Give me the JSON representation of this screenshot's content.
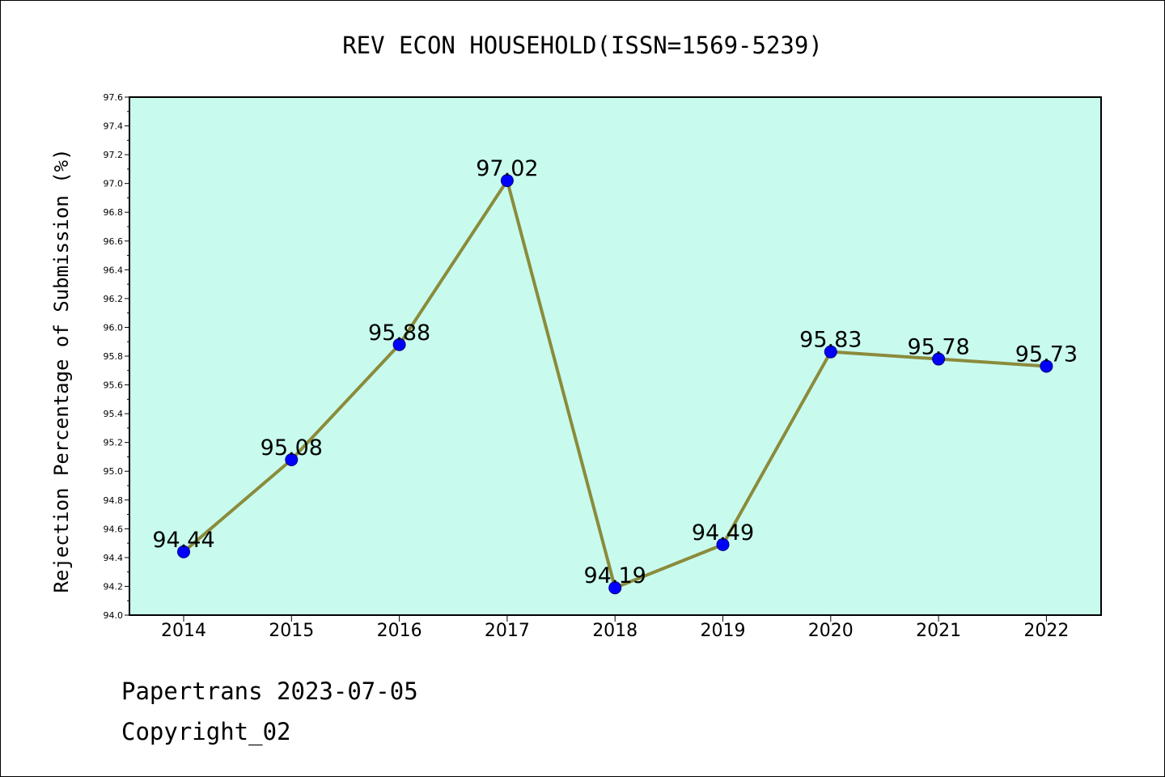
{
  "colors": {
    "background": "#ffffff",
    "plot_background": "#c8fbee",
    "line": "#8b8b3b",
    "marker": "#0000ff",
    "axis": "#000000",
    "text": "#000000"
  },
  "footer": {
    "source_line": "Papertrans 2023-07-05",
    "copyright_line": "Copyright_02"
  },
  "chart_data": {
    "type": "line",
    "title": "REV ECON HOUSEHOLD(ISSN=1569-5239)",
    "xlabel": "",
    "ylabel": "Rejection Percentage of Submission (%)",
    "categories": [
      "2014",
      "2015",
      "2016",
      "2017",
      "2018",
      "2019",
      "2020",
      "2021",
      "2022"
    ],
    "series": [
      {
        "values": [
          94.44,
          95.08,
          95.88,
          97.02,
          94.19,
          94.49,
          95.83,
          95.78,
          95.73
        ],
        "data_labels": [
          "94.44",
          "95.08",
          "95.88",
          "97.02",
          "94.19",
          "94.49",
          "95.83",
          "95.78",
          "95.73"
        ]
      }
    ],
    "ylim": [
      94.0,
      97.6
    ],
    "yticks": [
      "94.0",
      "94.2",
      "94.4",
      "94.6",
      "94.8",
      "95.0",
      "95.2",
      "95.4",
      "95.6",
      "95.8",
      "96.0",
      "96.2",
      "96.4",
      "96.6",
      "96.8",
      "97.0",
      "97.2",
      "97.4",
      "97.6"
    ],
    "grid": false,
    "legend": "none"
  }
}
